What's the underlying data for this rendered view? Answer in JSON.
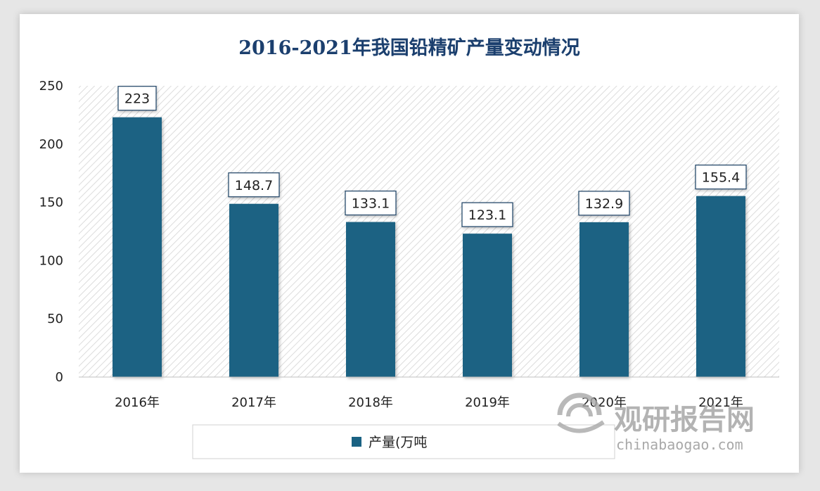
{
  "chart_data": {
    "type": "bar",
    "title": "2016-2021年我国铅精矿产量变动情况",
    "categories": [
      "2016年",
      "2017年",
      "2018年",
      "2019年",
      "2020年",
      "2021年"
    ],
    "series": [
      {
        "name": "产量(万吨",
        "values": [
          223,
          148.7,
          133.1,
          123.1,
          132.9,
          155.4
        ],
        "labels": [
          "223",
          "148.7",
          "133.1",
          "123.1",
          "132.9",
          "155.4"
        ]
      }
    ],
    "yticks": [
      "0",
      "50",
      "100",
      "150",
      "200",
      "250"
    ],
    "ylim": [
      0,
      250
    ],
    "bar_color": "#1a6283",
    "legend_position": "bottom"
  },
  "watermark": {
    "brand": "观研报告网",
    "url": "chinabaogao.com"
  }
}
